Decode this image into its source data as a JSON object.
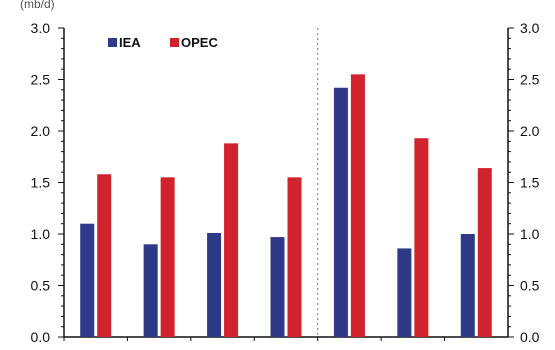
{
  "chart_data": {
    "type": "bar",
    "unit_label": "(mb/d)",
    "categories": [
      "",
      "",
      "",
      "",
      "",
      "",
      ""
    ],
    "series": [
      {
        "name": "IEA",
        "color": "#2e3a87",
        "values": [
          1.1,
          0.9,
          1.01,
          0.97,
          2.42,
          0.86,
          1.0
        ]
      },
      {
        "name": "OPEC",
        "color": "#d0232e",
        "values": [
          1.58,
          1.55,
          1.88,
          1.55,
          2.55,
          1.93,
          1.64
        ]
      }
    ],
    "ylim": [
      0,
      3.0
    ],
    "yticks": [
      "0.0",
      "0.5",
      "1.0",
      "1.5",
      "2.0",
      "2.5",
      "3.0"
    ],
    "ytick_values": [
      0,
      0.5,
      1.0,
      1.5,
      2.0,
      2.5,
      3.0
    ],
    "secondary_axis": "right, same scale",
    "divider": "dotted vertical line between 4th and 5th group",
    "legend_position": "top-left",
    "grid": false
  }
}
